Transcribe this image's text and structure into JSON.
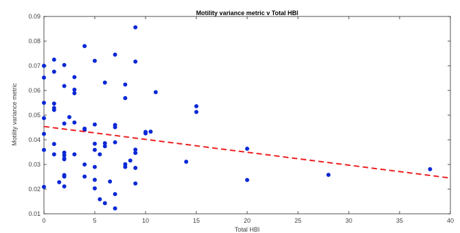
{
  "chart_data": {
    "type": "scatter",
    "title": "Motility variance metric v Total HBI",
    "xlabel": "Total HBI",
    "ylabel": "Motility variance metric",
    "xlim": [
      0,
      40
    ],
    "ylim": [
      0.01,
      0.09
    ],
    "x_ticks": [
      "0",
      "5",
      "10",
      "15",
      "20",
      "25",
      "30",
      "35",
      "40"
    ],
    "y_ticks": [
      "0.01",
      "0.02",
      "0.03",
      "0.04",
      "0.05",
      "0.06",
      "0.07",
      "0.08",
      "0.09"
    ],
    "grid": false,
    "colors": {
      "points": "#0b28d6",
      "trend": "#ee1c1c",
      "axis": "#262626"
    },
    "points": [
      {
        "x": 0,
        "y": 0.07
      },
      {
        "x": 0,
        "y": 0.0652
      },
      {
        "x": 0,
        "y": 0.055
      },
      {
        "x": 0,
        "y": 0.0488
      },
      {
        "x": 0,
        "y": 0.0424
      },
      {
        "x": 0,
        "y": 0.0359
      },
      {
        "x": 0,
        "y": 0.0209
      },
      {
        "x": 1,
        "y": 0.0725
      },
      {
        "x": 1,
        "y": 0.0676
      },
      {
        "x": 1,
        "y": 0.0547
      },
      {
        "x": 1,
        "y": 0.0529
      },
      {
        "x": 1,
        "y": 0.0521
      },
      {
        "x": 1,
        "y": 0.0383
      },
      {
        "x": 1,
        "y": 0.0341
      },
      {
        "x": 1.5,
        "y": 0.0228
      },
      {
        "x": 2,
        "y": 0.0703
      },
      {
        "x": 2,
        "y": 0.0618
      },
      {
        "x": 2,
        "y": 0.0466
      },
      {
        "x": 2,
        "y": 0.0348
      },
      {
        "x": 2,
        "y": 0.0337
      },
      {
        "x": 2,
        "y": 0.0324
      },
      {
        "x": 2,
        "y": 0.0321
      },
      {
        "x": 2,
        "y": 0.0257
      },
      {
        "x": 2,
        "y": 0.0251
      },
      {
        "x": 2,
        "y": 0.0211
      },
      {
        "x": 2.5,
        "y": 0.0492
      },
      {
        "x": 3,
        "y": 0.0654
      },
      {
        "x": 3,
        "y": 0.0603
      },
      {
        "x": 3,
        "y": 0.0589
      },
      {
        "x": 3,
        "y": 0.047
      },
      {
        "x": 3,
        "y": 0.0341
      },
      {
        "x": 4,
        "y": 0.078
      },
      {
        "x": 4,
        "y": 0.0445
      },
      {
        "x": 4,
        "y": 0.044
      },
      {
        "x": 4,
        "y": 0.03
      },
      {
        "x": 4,
        "y": 0.0251
      },
      {
        "x": 5,
        "y": 0.072
      },
      {
        "x": 5,
        "y": 0.0462
      },
      {
        "x": 5,
        "y": 0.0384
      },
      {
        "x": 5,
        "y": 0.0359
      },
      {
        "x": 5,
        "y": 0.029
      },
      {
        "x": 5,
        "y": 0.0238
      },
      {
        "x": 5,
        "y": 0.0203
      },
      {
        "x": 5.5,
        "y": 0.0341
      },
      {
        "x": 5.5,
        "y": 0.0159
      },
      {
        "x": 6,
        "y": 0.0632
      },
      {
        "x": 6,
        "y": 0.0386
      },
      {
        "x": 6,
        "y": 0.0374
      },
      {
        "x": 6,
        "y": 0.0143
      },
      {
        "x": 6.5,
        "y": 0.0231
      },
      {
        "x": 7,
        "y": 0.0745
      },
      {
        "x": 7,
        "y": 0.046
      },
      {
        "x": 7,
        "y": 0.0451
      },
      {
        "x": 7,
        "y": 0.039
      },
      {
        "x": 7,
        "y": 0.018
      },
      {
        "x": 7,
        "y": 0.0122
      },
      {
        "x": 8,
        "y": 0.0624
      },
      {
        "x": 8,
        "y": 0.0569
      },
      {
        "x": 8,
        "y": 0.0301
      },
      {
        "x": 8,
        "y": 0.029
      },
      {
        "x": 8.5,
        "y": 0.0316
      },
      {
        "x": 9,
        "y": 0.0856
      },
      {
        "x": 9,
        "y": 0.0717
      },
      {
        "x": 9,
        "y": 0.036
      },
      {
        "x": 9,
        "y": 0.0347
      },
      {
        "x": 9,
        "y": 0.0286
      },
      {
        "x": 9,
        "y": 0.0223
      },
      {
        "x": 10,
        "y": 0.0432
      },
      {
        "x": 10,
        "y": 0.0426
      },
      {
        "x": 10.5,
        "y": 0.0433
      },
      {
        "x": 11,
        "y": 0.0593
      },
      {
        "x": 14,
        "y": 0.0311
      },
      {
        "x": 15,
        "y": 0.0536
      },
      {
        "x": 15,
        "y": 0.0513
      },
      {
        "x": 20,
        "y": 0.0364
      },
      {
        "x": 20,
        "y": 0.0237
      },
      {
        "x": 28,
        "y": 0.0258
      },
      {
        "x": 38,
        "y": 0.0281
      }
    ],
    "trend_line": {
      "style": "dashed",
      "points": [
        {
          "x": 0,
          "y": 0.0454
        },
        {
          "x": 40,
          "y": 0.0245
        }
      ]
    }
  }
}
